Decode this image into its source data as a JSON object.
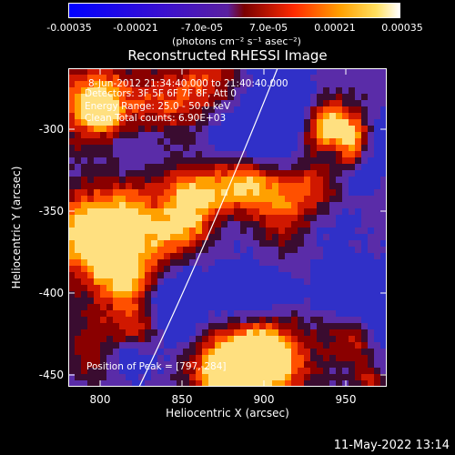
{
  "colorbar": {
    "ticks": [
      "-0.00035",
      "-0.00021",
      "-7.0e-05",
      "7.0e-05",
      "0.00021",
      "0.00035"
    ],
    "units": "(photons cm⁻² s⁻¹ asec⁻²)"
  },
  "title": "Reconstructed RHESSI Image",
  "annotations": {
    "time_range": "8-Jun-2012 21:34:40.000 to 21:40:40.000",
    "detectors": "Detectors: 3F 5F 6F 7F 8F, Att 0",
    "energy_range": "Energy Range: 25.0 - 50.0 keV",
    "method": "Clean    Total counts: 6.90E+03",
    "peak": "Position of Peak = [797,-284]"
  },
  "axes": {
    "xlabel": "Heliocentric X (arcsec)",
    "ylabel": "Heliocentric Y (arcsec)",
    "xticks": [
      "800",
      "850",
      "900",
      "950"
    ],
    "yticks": [
      "-300",
      "-350",
      "-400",
      "-450"
    ]
  },
  "timestamp": "11-May-2022 13:14"
}
